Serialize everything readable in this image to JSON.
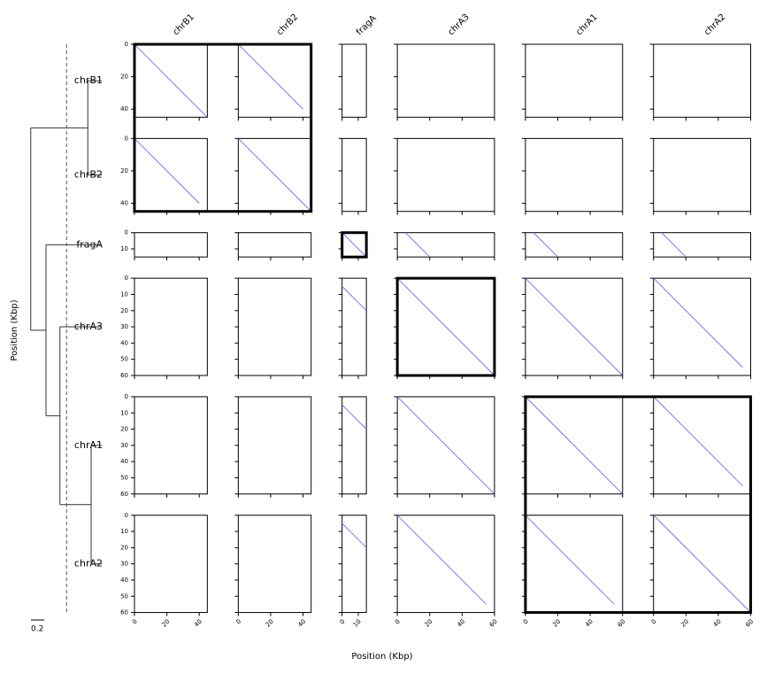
{
  "chart_data": {
    "type": "dotplot",
    "xlabel": "Position (Kbp)",
    "ylabel": "Position (Kbp)",
    "sequences": [
      {
        "name": "chrB1",
        "length": 45,
        "ticks": [
          0,
          20,
          40
        ]
      },
      {
        "name": "chrB2",
        "length": 45,
        "ticks": [
          0,
          20,
          40
        ]
      },
      {
        "name": "fragA",
        "length": 15,
        "ticks": [
          0,
          10
        ]
      },
      {
        "name": "chrA3",
        "length": 60,
        "ticks": [
          0,
          10,
          20,
          30,
          40,
          50,
          60
        ]
      },
      {
        "name": "chrA1",
        "length": 60,
        "ticks": [
          0,
          10,
          20,
          30,
          40,
          50,
          60
        ]
      },
      {
        "name": "chrA2",
        "length": 60,
        "ticks": [
          0,
          10,
          20,
          30,
          40,
          50,
          60
        ]
      }
    ],
    "column_ticks": {
      "0": [
        0,
        20,
        40
      ],
      "1": [
        0,
        20,
        40
      ],
      "2": [
        0,
        10
      ],
      "3": [
        0,
        20,
        40,
        60
      ],
      "4": [
        0,
        20,
        40,
        60
      ],
      "5": [
        0,
        20,
        40,
        60
      ]
    },
    "line_color": "#5b5bf0",
    "alignments": [
      {
        "row": 0,
        "col": 0,
        "x": [
          0,
          45
        ],
        "y": [
          0,
          45
        ]
      },
      {
        "row": 0,
        "col": 1,
        "x": [
          0,
          40
        ],
        "y": [
          0,
          40
        ]
      },
      {
        "row": 1,
        "col": 0,
        "x": [
          0,
          40
        ],
        "y": [
          0,
          40
        ]
      },
      {
        "row": 1,
        "col": 1,
        "x": [
          0,
          45
        ],
        "y": [
          0,
          45
        ]
      },
      {
        "row": 2,
        "col": 2,
        "x": [
          0,
          14
        ],
        "y": [
          0,
          14
        ]
      },
      {
        "row": 2,
        "col": 3,
        "x": [
          5,
          20
        ],
        "y": [
          0,
          15
        ]
      },
      {
        "row": 2,
        "col": 4,
        "x": [
          5,
          20
        ],
        "y": [
          0,
          15
        ]
      },
      {
        "row": 2,
        "col": 5,
        "x": [
          5,
          20
        ],
        "y": [
          0,
          15
        ]
      },
      {
        "row": 3,
        "col": 2,
        "x": [
          0,
          15
        ],
        "y": [
          5,
          20
        ]
      },
      {
        "row": 3,
        "col": 3,
        "x": [
          0,
          60
        ],
        "y": [
          0,
          60
        ]
      },
      {
        "row": 3,
        "col": 4,
        "x": [
          0,
          60
        ],
        "y": [
          0,
          60
        ]
      },
      {
        "row": 3,
        "col": 5,
        "x": [
          0,
          55
        ],
        "y": [
          0,
          55
        ]
      },
      {
        "row": 4,
        "col": 2,
        "x": [
          0,
          15
        ],
        "y": [
          5,
          20
        ]
      },
      {
        "row": 4,
        "col": 3,
        "x": [
          0,
          60
        ],
        "y": [
          0,
          60
        ]
      },
      {
        "row": 4,
        "col": 4,
        "x": [
          0,
          60
        ],
        "y": [
          0,
          60
        ]
      },
      {
        "row": 4,
        "col": 5,
        "x": [
          0,
          55
        ],
        "y": [
          0,
          55
        ]
      },
      {
        "row": 5,
        "col": 2,
        "x": [
          0,
          15
        ],
        "y": [
          5,
          20
        ]
      },
      {
        "row": 5,
        "col": 3,
        "x": [
          0,
          55
        ],
        "y": [
          0,
          55
        ]
      },
      {
        "row": 5,
        "col": 4,
        "x": [
          0,
          55
        ],
        "y": [
          0,
          55
        ]
      },
      {
        "row": 5,
        "col": 5,
        "x": [
          0,
          60
        ],
        "y": [
          0,
          60
        ]
      }
    ],
    "groups": [
      [
        0,
        1
      ],
      [
        2
      ],
      [
        3
      ],
      [
        4,
        5
      ]
    ],
    "tree": {
      "height": 1.07,
      "children": [
        {
          "height": 0.21,
          "children": [
            {
              "leaf": 0
            },
            {
              "leaf": 1
            }
          ]
        },
        {
          "height": 0.84,
          "children": [
            {
              "leaf": 2
            },
            {
              "height": 0.63,
              "children": [
                {
                  "leaf": 3
                },
                {
                  "height": 0.16,
                  "children": [
                    {
                      "leaf": 4
                    },
                    {
                      "leaf": 5
                    }
                  ]
                }
              ]
            }
          ]
        }
      ]
    },
    "threshold": 0.53,
    "scale_bar": {
      "value": 0.2,
      "label": "0.2"
    }
  }
}
